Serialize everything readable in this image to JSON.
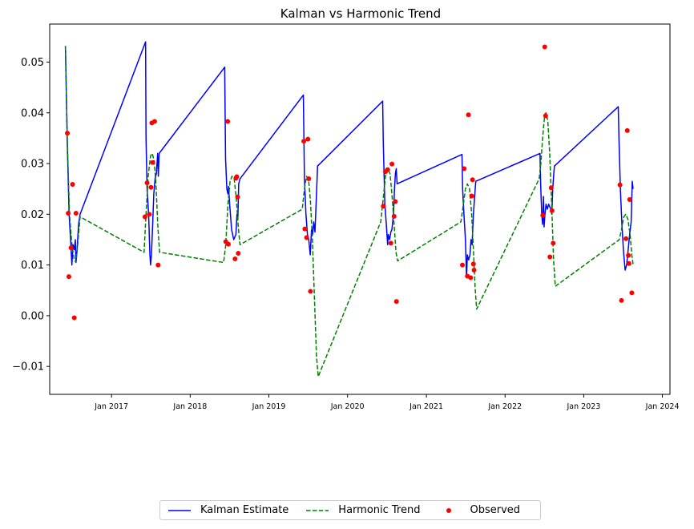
{
  "chart_data": {
    "type": "line",
    "title": "Kalman vs Harmonic Trend",
    "xlabel": "",
    "ylabel": "",
    "xlim": [
      "2016-03-20",
      "2024-02-05"
    ],
    "ylim": [
      -0.0155,
      0.0575
    ],
    "yticks": [
      -0.01,
      0.0,
      0.01,
      0.02,
      0.03,
      0.04,
      0.05
    ],
    "ytick_labels": [
      "−0.01",
      "0.00",
      "0.01",
      "0.02",
      "0.03",
      "0.04",
      "0.05"
    ],
    "xticks": [
      "2017-01-01",
      "2018-01-01",
      "2019-01-01",
      "2020-01-01",
      "2021-01-01",
      "2022-01-01",
      "2023-01-01",
      "2024-01-01"
    ],
    "xtick_labels": [
      "Jan 2017",
      "Jan 2018",
      "Jan 2019",
      "Jan 2020",
      "Jan 2021",
      "Jan 2022",
      "Jan 2023",
      "Jan 2024"
    ],
    "grid": false,
    "legend": {
      "placement": "bottom-center",
      "columns": 3
    },
    "series": [
      {
        "name": "Kalman Estimate",
        "style": "solid",
        "color": "#0000ff",
        "points": [
          [
            "2016-06-01",
            0.0531
          ],
          [
            "2016-06-10",
            0.0335
          ],
          [
            "2016-06-18",
            0.02
          ],
          [
            "2016-06-25",
            0.015
          ],
          [
            "2016-07-01",
            0.01
          ],
          [
            "2016-07-06",
            0.014
          ],
          [
            "2016-07-12",
            0.013
          ],
          [
            "2016-07-17",
            0.015
          ],
          [
            "2016-07-20",
            0.0105
          ],
          [
            "2016-07-25",
            0.013
          ],
          [
            "2016-08-01",
            0.018
          ],
          [
            "2016-08-08",
            0.02
          ],
          [
            "2017-06-08",
            0.054
          ],
          [
            "2017-06-10",
            0.035
          ],
          [
            "2017-06-15",
            0.025
          ],
          [
            "2017-06-22",
            0.02
          ],
          [
            "2017-06-28",
            0.012
          ],
          [
            "2017-07-01",
            0.01
          ],
          [
            "2017-07-05",
            0.012
          ],
          [
            "2017-07-10",
            0.017
          ],
          [
            "2017-07-16",
            0.024
          ],
          [
            "2017-07-22",
            0.027
          ],
          [
            "2017-07-28",
            0.028
          ],
          [
            "2017-08-03",
            0.032
          ],
          [
            "2017-08-06",
            0.0275
          ],
          [
            "2017-08-10",
            0.032
          ],
          [
            "2018-06-10",
            0.049
          ],
          [
            "2018-06-14",
            0.031
          ],
          [
            "2018-06-20",
            0.025
          ],
          [
            "2018-06-25",
            0.024
          ],
          [
            "2018-06-28",
            0.0255
          ],
          [
            "2018-07-03",
            0.022
          ],
          [
            "2018-07-12",
            0.017
          ],
          [
            "2018-07-22",
            0.015
          ],
          [
            "2018-08-01",
            0.016
          ],
          [
            "2018-08-06",
            0.02
          ],
          [
            "2018-08-10",
            0.019
          ],
          [
            "2018-08-14",
            0.026
          ],
          [
            "2018-08-20",
            0.027
          ],
          [
            "2019-06-10",
            0.0435
          ],
          [
            "2019-06-15",
            0.027
          ],
          [
            "2019-06-22",
            0.02
          ],
          [
            "2019-06-29",
            0.016
          ],
          [
            "2019-07-05",
            0.015
          ],
          [
            "2019-07-12",
            0.012
          ],
          [
            "2019-07-18",
            0.017
          ],
          [
            "2019-07-23",
            0.016
          ],
          [
            "2019-07-28",
            0.0185
          ],
          [
            "2019-08-03",
            0.0165
          ],
          [
            "2019-08-08",
            0.022
          ],
          [
            "2019-08-15",
            0.0295
          ],
          [
            "2020-06-12",
            0.0423
          ],
          [
            "2020-06-15",
            0.034
          ],
          [
            "2020-06-22",
            0.022
          ],
          [
            "2020-06-29",
            0.018
          ],
          [
            "2020-07-05",
            0.014
          ],
          [
            "2020-07-08",
            0.016
          ],
          [
            "2020-07-14",
            0.015
          ],
          [
            "2020-07-20",
            0.0165
          ],
          [
            "2020-07-25",
            0.017
          ],
          [
            "2020-08-01",
            0.02
          ],
          [
            "2020-08-06",
            0.025
          ],
          [
            "2020-08-10",
            0.028
          ],
          [
            "2020-08-14",
            0.029
          ],
          [
            "2020-08-18",
            0.026
          ],
          [
            "2021-06-15",
            0.0318
          ],
          [
            "2021-06-18",
            0.025
          ],
          [
            "2021-06-24",
            0.02
          ],
          [
            "2021-07-01",
            0.015
          ],
          [
            "2021-07-06",
            0.0075
          ],
          [
            "2021-07-10",
            0.012
          ],
          [
            "2021-07-16",
            0.011
          ],
          [
            "2021-07-22",
            0.012
          ],
          [
            "2021-07-27",
            0.015
          ],
          [
            "2021-08-01",
            0.014
          ],
          [
            "2021-08-07",
            0.02
          ],
          [
            "2021-08-12",
            0.023
          ],
          [
            "2021-08-18",
            0.0265
          ],
          [
            "2022-06-12",
            0.032
          ],
          [
            "2022-06-15",
            0.026
          ],
          [
            "2022-06-20",
            0.02
          ],
          [
            "2022-06-24",
            0.018
          ],
          [
            "2022-06-28",
            0.0235
          ],
          [
            "2022-07-01",
            0.0175
          ],
          [
            "2022-07-05",
            0.02
          ],
          [
            "2022-07-10",
            0.022
          ],
          [
            "2022-07-16",
            0.021
          ],
          [
            "2022-07-22",
            0.022
          ],
          [
            "2022-08-01",
            0.021
          ],
          [
            "2022-08-06",
            0.02
          ],
          [
            "2022-08-10",
            0.025
          ],
          [
            "2022-08-15",
            0.028
          ],
          [
            "2022-08-18",
            0.0295
          ],
          [
            "2023-06-10",
            0.0412
          ],
          [
            "2023-06-14",
            0.034
          ],
          [
            "2023-06-20",
            0.025
          ],
          [
            "2023-06-27",
            0.018
          ],
          [
            "2023-07-04",
            0.013
          ],
          [
            "2023-07-12",
            0.009
          ],
          [
            "2023-07-19",
            0.01
          ],
          [
            "2023-07-26",
            0.013
          ],
          [
            "2023-08-02",
            0.016
          ],
          [
            "2023-08-09",
            0.0185
          ],
          [
            "2023-08-14",
            0.0265
          ],
          [
            "2023-08-18",
            0.025
          ]
        ]
      },
      {
        "name": "Harmonic Trend",
        "style": "dashed",
        "color": "#008000",
        "points": [
          [
            "2016-06-01",
            0.0532
          ],
          [
            "2016-06-10",
            0.034
          ],
          [
            "2016-06-20",
            0.02
          ],
          [
            "2016-07-01",
            0.014
          ],
          [
            "2016-07-12",
            0.011
          ],
          [
            "2016-07-20",
            0.0105
          ],
          [
            "2016-07-28",
            0.014
          ],
          [
            "2016-08-08",
            0.0195
          ],
          [
            "2017-06-01",
            0.0125
          ],
          [
            "2017-06-10",
            0.02
          ],
          [
            "2017-06-20",
            0.0275
          ],
          [
            "2017-07-01",
            0.0315
          ],
          [
            "2017-07-09",
            0.032
          ],
          [
            "2017-07-18",
            0.0305
          ],
          [
            "2017-07-26",
            0.026
          ],
          [
            "2017-08-04",
            0.0175
          ],
          [
            "2017-08-12",
            0.0125
          ],
          [
            "2018-06-05",
            0.0105
          ],
          [
            "2018-06-15",
            0.014
          ],
          [
            "2018-06-25",
            0.022
          ],
          [
            "2018-07-05",
            0.0265
          ],
          [
            "2018-07-14",
            0.0275
          ],
          [
            "2018-07-24",
            0.027
          ],
          [
            "2018-08-03",
            0.023
          ],
          [
            "2018-08-12",
            0.0175
          ],
          [
            "2018-08-20",
            0.014
          ],
          [
            "2019-06-05",
            0.021
          ],
          [
            "2019-06-15",
            0.025
          ],
          [
            "2019-06-25",
            0.0275
          ],
          [
            "2019-07-05",
            0.0265
          ],
          [
            "2019-07-13",
            0.0225
          ],
          [
            "2019-07-22",
            0.015
          ],
          [
            "2019-07-31",
            0.004
          ],
          [
            "2019-08-10",
            -0.008
          ],
          [
            "2019-08-18",
            -0.012
          ],
          [
            "2020-06-03",
            0.0185
          ],
          [
            "2020-06-13",
            0.0225
          ],
          [
            "2020-06-25",
            0.0275
          ],
          [
            "2020-07-06",
            0.029
          ],
          [
            "2020-07-16",
            0.028
          ],
          [
            "2020-07-25",
            0.024
          ],
          [
            "2020-08-04",
            0.018
          ],
          [
            "2020-08-13",
            0.0125
          ],
          [
            "2020-08-20",
            0.0108
          ],
          [
            "2021-06-10",
            0.0185
          ],
          [
            "2021-06-20",
            0.0215
          ],
          [
            "2021-07-01",
            0.025
          ],
          [
            "2021-07-10",
            0.026
          ],
          [
            "2021-07-20",
            0.025
          ],
          [
            "2021-07-30",
            0.02
          ],
          [
            "2021-08-07",
            0.013
          ],
          [
            "2021-08-15",
            0.0055
          ],
          [
            "2021-08-22",
            0.0013
          ],
          [
            "2022-06-08",
            0.027
          ],
          [
            "2022-06-16",
            0.03
          ],
          [
            "2022-06-25",
            0.0355
          ],
          [
            "2022-07-04",
            0.0397
          ],
          [
            "2022-07-10",
            0.04
          ],
          [
            "2022-07-18",
            0.0385
          ],
          [
            "2022-07-27",
            0.032
          ],
          [
            "2022-08-06",
            0.021
          ],
          [
            "2022-08-14",
            0.011
          ],
          [
            "2022-08-22",
            0.0058
          ],
          [
            "2023-06-15",
            0.015
          ],
          [
            "2023-06-25",
            0.017
          ],
          [
            "2023-07-06",
            0.0195
          ],
          [
            "2023-07-15",
            0.02
          ],
          [
            "2023-07-25",
            0.019
          ],
          [
            "2023-08-04",
            0.016
          ],
          [
            "2023-08-12",
            0.012
          ],
          [
            "2023-08-19",
            0.0098
          ]
        ]
      },
      {
        "name": "Observed",
        "style": "markers",
        "color": "#ff0000",
        "points": [
          [
            "2016-06-10",
            0.036
          ],
          [
            "2016-06-14",
            0.0202
          ],
          [
            "2016-06-17",
            0.0077
          ],
          [
            "2016-06-27",
            0.0134
          ],
          [
            "2016-07-04",
            0.0259
          ],
          [
            "2016-07-12",
            -0.0004
          ],
          [
            "2016-07-20",
            0.0202
          ],
          [
            "2017-06-05",
            0.0195
          ],
          [
            "2017-06-15",
            0.0262
          ],
          [
            "2017-06-25",
            0.02
          ],
          [
            "2017-07-03",
            0.0253
          ],
          [
            "2017-07-07",
            0.038
          ],
          [
            "2017-07-11",
            0.0302
          ],
          [
            "2017-07-20",
            0.0383
          ],
          [
            "2017-08-05",
            0.01
          ],
          [
            "2018-06-15",
            0.0146
          ],
          [
            "2018-06-24",
            0.0383
          ],
          [
            "2018-06-27",
            0.0141
          ],
          [
            "2018-07-28",
            0.0112
          ],
          [
            "2018-08-01",
            0.0271
          ],
          [
            "2018-08-05",
            0.0274
          ],
          [
            "2018-08-09",
            0.0234
          ],
          [
            "2018-08-12",
            0.0123
          ],
          [
            "2019-06-12",
            0.0344
          ],
          [
            "2019-06-17",
            0.0171
          ],
          [
            "2019-06-25",
            0.0154
          ],
          [
            "2019-07-01",
            0.0348
          ],
          [
            "2019-07-05",
            0.027
          ],
          [
            "2019-07-13",
            0.0048
          ],
          [
            "2020-06-15",
            0.0216
          ],
          [
            "2020-06-25",
            0.0284
          ],
          [
            "2020-07-05",
            0.0288
          ],
          [
            "2020-07-20",
            0.0143
          ],
          [
            "2020-07-25",
            0.0299
          ],
          [
            "2020-08-04",
            0.0196
          ],
          [
            "2020-08-10",
            0.0225
          ],
          [
            "2020-08-15",
            0.0028
          ],
          [
            "2021-06-17",
            0.01
          ],
          [
            "2021-06-25",
            0.029
          ],
          [
            "2021-07-10",
            0.0078
          ],
          [
            "2021-07-15",
            0.0396
          ],
          [
            "2021-07-25",
            0.0075
          ],
          [
            "2021-07-30",
            0.0236
          ],
          [
            "2021-08-03",
            0.0268
          ],
          [
            "2021-08-07",
            0.0102
          ],
          [
            "2021-08-10",
            0.009
          ],
          [
            "2022-06-25",
            0.0198
          ],
          [
            "2022-07-04",
            0.053
          ],
          [
            "2022-07-08",
            0.0394
          ],
          [
            "2022-07-28",
            0.0116
          ],
          [
            "2022-08-03",
            0.0252
          ],
          [
            "2022-08-07",
            0.0207
          ],
          [
            "2022-08-12",
            0.0143
          ],
          [
            "2023-06-18",
            0.0258
          ],
          [
            "2023-06-25",
            0.003
          ],
          [
            "2023-07-16",
            0.0152
          ],
          [
            "2023-07-22",
            0.0365
          ],
          [
            "2023-07-27",
            0.0119
          ],
          [
            "2023-07-30",
            0.0103
          ],
          [
            "2023-08-02",
            0.0229
          ],
          [
            "2023-08-12",
            0.0045
          ]
        ]
      }
    ]
  }
}
